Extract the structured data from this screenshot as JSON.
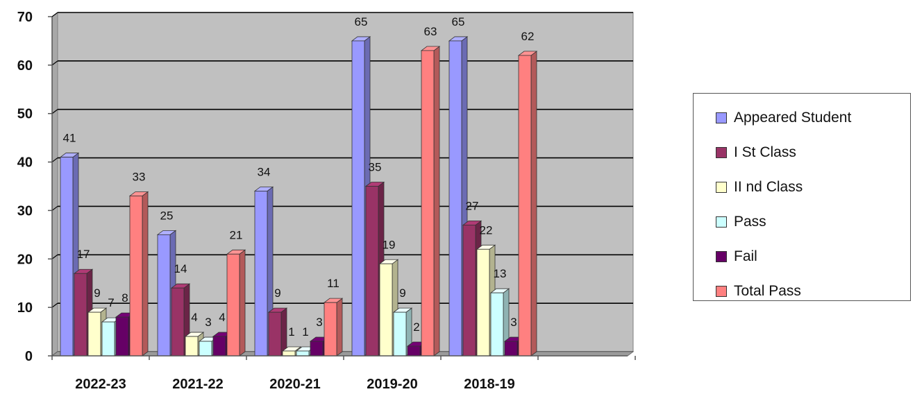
{
  "chart_data": {
    "type": "bar",
    "title": "",
    "xlabel": "",
    "ylabel": "",
    "categories": [
      "2022-23",
      "2021-22",
      "2020-21",
      "2019-20",
      "2018-19"
    ],
    "ylim": [
      0,
      70
    ],
    "yticks": [
      0,
      10,
      20,
      30,
      40,
      50,
      60,
      70
    ],
    "grid": true,
    "legend_position": "right",
    "series": [
      {
        "name": "Appeared Student",
        "values": [
          41,
          25,
          34,
          65,
          65
        ],
        "color": "#9999ff"
      },
      {
        "name": "I St Class",
        "values": [
          17,
          14,
          9,
          35,
          27
        ],
        "color": "#993366"
      },
      {
        "name": "II nd Class",
        "values": [
          9,
          4,
          1,
          19,
          22
        ],
        "color": "#ffffcc"
      },
      {
        "name": "Pass",
        "values": [
          7,
          3,
          1,
          9,
          13
        ],
        "color": "#ccffff"
      },
      {
        "name": "Fail",
        "values": [
          8,
          4,
          3,
          2,
          3
        ],
        "color": "#660066"
      },
      {
        "name": "Total Pass",
        "values": [
          33,
          21,
          11,
          63,
          62
        ],
        "color": "#ff8080"
      }
    ]
  },
  "legend": {
    "items": [
      {
        "label": "Appeared Student",
        "color": "#9999ff"
      },
      {
        "label": "I St Class",
        "color": "#993366"
      },
      {
        "label": "II nd Class",
        "color": "#ffffcc"
      },
      {
        "label": "Pass",
        "color": "#ccffff"
      },
      {
        "label": "Fail",
        "color": "#660066"
      },
      {
        "label": "Total Pass",
        "color": "#ff8080"
      }
    ]
  }
}
